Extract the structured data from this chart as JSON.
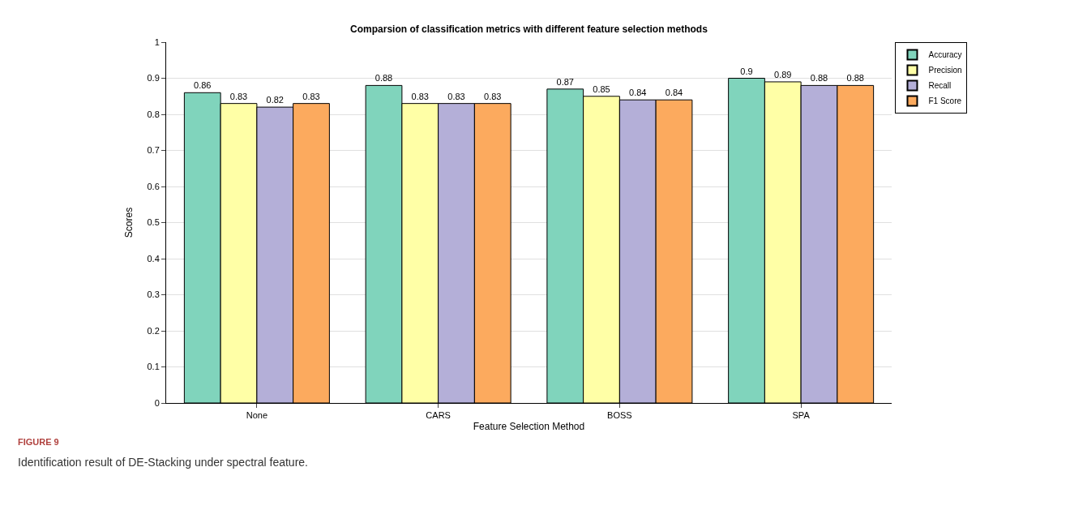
{
  "chart_data": {
    "type": "bar",
    "title": "Comparsion of classification metrics with different feature selection methods",
    "xlabel": "Feature Selection Method",
    "ylabel": "Scores",
    "categories": [
      "None",
      "CARS",
      "BOSS",
      "SPA"
    ],
    "series": [
      {
        "name": "Accuracy",
        "color": "#80d4bc",
        "values": [
          0.86,
          0.88,
          0.87,
          0.9
        ]
      },
      {
        "name": "Precision",
        "color": "#ffffa6",
        "values": [
          0.83,
          0.83,
          0.85,
          0.89
        ]
      },
      {
        "name": "Recall",
        "color": "#b4afd8",
        "values": [
          0.82,
          0.83,
          0.84,
          0.88
        ]
      },
      {
        "name": "F1 Score",
        "color": "#fcaa5e",
        "values": [
          0.83,
          0.83,
          0.84,
          0.88
        ]
      }
    ],
    "ylim": [
      0,
      1
    ],
    "yticks": [
      0,
      0.1,
      0.2,
      0.3,
      0.4,
      0.5,
      0.6,
      0.7,
      0.8,
      0.9,
      1
    ],
    "grid": "y",
    "legend": "top right",
    "data_labels": true,
    "annotations": [
      "FIGURE 9",
      "Identification result of DE-Stacking under spectral feature."
    ]
  }
}
